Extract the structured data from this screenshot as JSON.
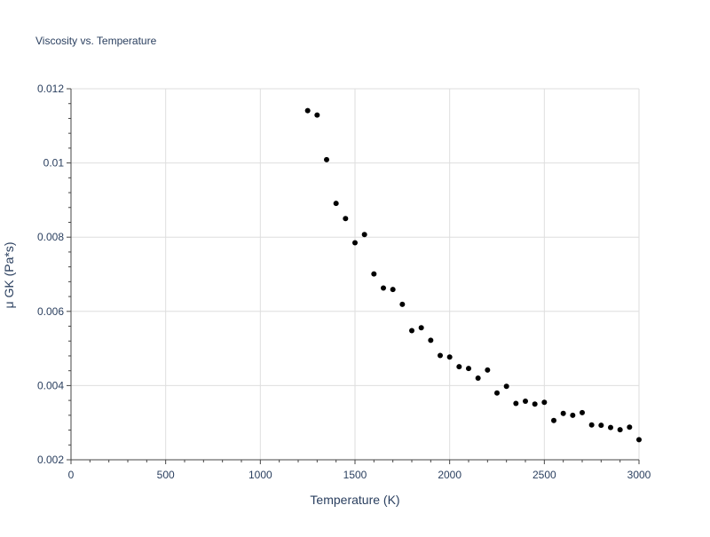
{
  "chart_data": {
    "type": "scatter",
    "title": "Viscosity vs. Temperature",
    "xlabel": "Temperature (K)",
    "ylabel": "μ GK (Pa*s)",
    "xlim": [
      0,
      3000
    ],
    "ylim": [
      0.002,
      0.012
    ],
    "xticks": [
      0,
      500,
      1000,
      1500,
      2000,
      2500,
      3000
    ],
    "xtick_labels": [
      "0",
      "500",
      "1000",
      "1500",
      "2000",
      "2500",
      "3000"
    ],
    "yticks": [
      0.002,
      0.004,
      0.006,
      0.008,
      0.01,
      0.012
    ],
    "ytick_labels": [
      "0.002",
      "0.004",
      "0.006",
      "0.008",
      "0.01",
      "0.012"
    ],
    "grid": true,
    "marker_color": "#000000",
    "series": [
      {
        "x": [
          1250,
          1300,
          1350,
          1400,
          1450,
          1500,
          1550,
          1600,
          1650,
          1700,
          1750,
          1800,
          1850,
          1900,
          1950,
          2000,
          2050,
          2100,
          2150,
          2200,
          2250,
          2300,
          2350,
          2400,
          2450,
          2500,
          2550,
          2600,
          2650,
          2700,
          2750,
          2800,
          2850,
          2900,
          2950,
          3000
        ],
        "y": [
          0.01141,
          0.01129,
          0.01009,
          0.00891,
          0.0085,
          0.00785,
          0.00807,
          0.00701,
          0.00663,
          0.00659,
          0.00619,
          0.00548,
          0.00556,
          0.00522,
          0.00481,
          0.00477,
          0.00451,
          0.00446,
          0.0042,
          0.00442,
          0.0038,
          0.00398,
          0.00352,
          0.00358,
          0.0035,
          0.00355,
          0.00306,
          0.00325,
          0.0032,
          0.00327,
          0.00294,
          0.00293,
          0.00287,
          0.00281,
          0.00288,
          0.00254
        ]
      }
    ]
  }
}
